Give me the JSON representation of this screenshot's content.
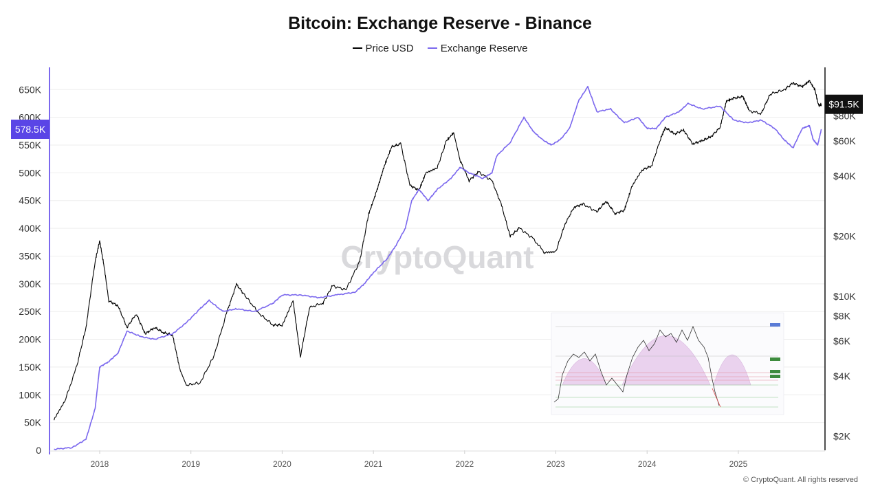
{
  "chart_data": {
    "type": "line",
    "title": "Bitcoin: Exchange Reserve - Binance",
    "series": [
      {
        "name": "Price USD",
        "color": "#000000",
        "axis": "right",
        "points": [
          [
            2017.5,
            2400
          ],
          [
            2017.62,
            3000
          ],
          [
            2017.75,
            4500
          ],
          [
            2017.85,
            7000
          ],
          [
            2017.95,
            15000
          ],
          [
            2018.0,
            19000
          ],
          [
            2018.05,
            14000
          ],
          [
            2018.1,
            9500
          ],
          [
            2018.2,
            9000
          ],
          [
            2018.3,
            7000
          ],
          [
            2018.4,
            8200
          ],
          [
            2018.5,
            6500
          ],
          [
            2018.6,
            7000
          ],
          [
            2018.7,
            6600
          ],
          [
            2018.8,
            6400
          ],
          [
            2018.88,
            4300
          ],
          [
            2018.95,
            3600
          ],
          [
            2019.1,
            3700
          ],
          [
            2019.25,
            5000
          ],
          [
            2019.4,
            8500
          ],
          [
            2019.5,
            11500
          ],
          [
            2019.6,
            10000
          ],
          [
            2019.75,
            8200
          ],
          [
            2019.9,
            7200
          ],
          [
            2020.0,
            7200
          ],
          [
            2020.12,
            9500
          ],
          [
            2020.2,
            5000
          ],
          [
            2020.3,
            8800
          ],
          [
            2020.45,
            9300
          ],
          [
            2020.55,
            11300
          ],
          [
            2020.7,
            10800
          ],
          [
            2020.85,
            15000
          ],
          [
            2020.95,
            26000
          ],
          [
            2021.03,
            33000
          ],
          [
            2021.12,
            45000
          ],
          [
            2021.2,
            56000
          ],
          [
            2021.3,
            58000
          ],
          [
            2021.4,
            36000
          ],
          [
            2021.5,
            34000
          ],
          [
            2021.58,
            42000
          ],
          [
            2021.7,
            44000
          ],
          [
            2021.8,
            60000
          ],
          [
            2021.88,
            66000
          ],
          [
            2021.95,
            48000
          ],
          [
            2022.05,
            38000
          ],
          [
            2022.15,
            42000
          ],
          [
            2022.3,
            38000
          ],
          [
            2022.4,
            29000
          ],
          [
            2022.5,
            20000
          ],
          [
            2022.6,
            22000
          ],
          [
            2022.75,
            19500
          ],
          [
            2022.88,
            16500
          ],
          [
            2023.0,
            16800
          ],
          [
            2023.1,
            23000
          ],
          [
            2023.2,
            28000
          ],
          [
            2023.3,
            29000
          ],
          [
            2023.45,
            26500
          ],
          [
            2023.55,
            30000
          ],
          [
            2023.65,
            26000
          ],
          [
            2023.75,
            27000
          ],
          [
            2023.83,
            35000
          ],
          [
            2023.95,
            43000
          ],
          [
            2024.05,
            45000
          ],
          [
            2024.15,
            62000
          ],
          [
            2024.2,
            70000
          ],
          [
            2024.3,
            65000
          ],
          [
            2024.4,
            68000
          ],
          [
            2024.5,
            58000
          ],
          [
            2024.6,
            60000
          ],
          [
            2024.7,
            63000
          ],
          [
            2024.8,
            70000
          ],
          [
            2024.87,
            95000
          ],
          [
            2024.95,
            98000
          ],
          [
            2025.05,
            100000
          ],
          [
            2025.12,
            85000
          ],
          [
            2025.25,
            82000
          ],
          [
            2025.35,
            103000
          ],
          [
            2025.5,
            108000
          ],
          [
            2025.6,
            117000
          ],
          [
            2025.7,
            112000
          ],
          [
            2025.78,
            120000
          ],
          [
            2025.84,
            108000
          ],
          [
            2025.88,
            90000
          ],
          [
            2025.91,
            91500
          ]
        ]
      },
      {
        "name": "Exchange Reserve",
        "color": "#7b68ee",
        "axis": "left",
        "points": [
          [
            2017.5,
            2000
          ],
          [
            2017.7,
            5000
          ],
          [
            2017.85,
            20000
          ],
          [
            2017.95,
            75000
          ],
          [
            2018.0,
            150000
          ],
          [
            2018.1,
            160000
          ],
          [
            2018.2,
            175000
          ],
          [
            2018.3,
            215000
          ],
          [
            2018.45,
            205000
          ],
          [
            2018.6,
            200000
          ],
          [
            2018.8,
            210000
          ],
          [
            2018.95,
            230000
          ],
          [
            2019.1,
            255000
          ],
          [
            2019.2,
            270000
          ],
          [
            2019.35,
            250000
          ],
          [
            2019.5,
            255000
          ],
          [
            2019.7,
            250000
          ],
          [
            2019.9,
            265000
          ],
          [
            2020.0,
            280000
          ],
          [
            2020.2,
            280000
          ],
          [
            2020.4,
            275000
          ],
          [
            2020.6,
            280000
          ],
          [
            2020.8,
            285000
          ],
          [
            2020.9,
            300000
          ],
          [
            2021.0,
            320000
          ],
          [
            2021.15,
            345000
          ],
          [
            2021.25,
            370000
          ],
          [
            2021.35,
            400000
          ],
          [
            2021.42,
            450000
          ],
          [
            2021.5,
            470000
          ],
          [
            2021.6,
            450000
          ],
          [
            2021.7,
            470000
          ],
          [
            2021.85,
            490000
          ],
          [
            2021.95,
            510000
          ],
          [
            2022.05,
            500000
          ],
          [
            2022.2,
            490000
          ],
          [
            2022.3,
            500000
          ],
          [
            2022.35,
            530000
          ],
          [
            2022.5,
            555000
          ],
          [
            2022.65,
            600000
          ],
          [
            2022.75,
            575000
          ],
          [
            2022.85,
            560000
          ],
          [
            2022.95,
            550000
          ],
          [
            2023.05,
            560000
          ],
          [
            2023.15,
            580000
          ],
          [
            2023.25,
            630000
          ],
          [
            2023.35,
            655000
          ],
          [
            2023.45,
            610000
          ],
          [
            2023.6,
            615000
          ],
          [
            2023.75,
            590000
          ],
          [
            2023.9,
            600000
          ],
          [
            2024.0,
            580000
          ],
          [
            2024.1,
            580000
          ],
          [
            2024.2,
            600000
          ],
          [
            2024.35,
            610000
          ],
          [
            2024.45,
            625000
          ],
          [
            2024.6,
            615000
          ],
          [
            2024.8,
            620000
          ],
          [
            2024.95,
            595000
          ],
          [
            2025.1,
            590000
          ],
          [
            2025.25,
            595000
          ],
          [
            2025.4,
            580000
          ],
          [
            2025.5,
            560000
          ],
          [
            2025.6,
            545000
          ],
          [
            2025.7,
            580000
          ],
          [
            2025.78,
            585000
          ],
          [
            2025.82,
            560000
          ],
          [
            2025.87,
            550000
          ],
          [
            2025.91,
            578500
          ]
        ]
      }
    ],
    "x_range": [
      2017.45,
      2025.95
    ],
    "x_ticks": [
      {
        "value": 2018,
        "label": "2018"
      },
      {
        "value": 2019,
        "label": "2019"
      },
      {
        "value": 2020,
        "label": "2020"
      },
      {
        "value": 2021,
        "label": "2021"
      },
      {
        "value": 2022,
        "label": "2022"
      },
      {
        "value": 2023,
        "label": "2023"
      },
      {
        "value": 2024,
        "label": "2024"
      },
      {
        "value": 2025,
        "label": "2025"
      }
    ],
    "y_left": {
      "range": [
        0,
        690000
      ],
      "scale": "linear",
      "ticks": [
        {
          "value": 0,
          "label": "0"
        },
        {
          "value": 50000,
          "label": "50K"
        },
        {
          "value": 100000,
          "label": "100K"
        },
        {
          "value": 150000,
          "label": "150K"
        },
        {
          "value": 200000,
          "label": "200K"
        },
        {
          "value": 250000,
          "label": "250K"
        },
        {
          "value": 300000,
          "label": "300K"
        },
        {
          "value": 350000,
          "label": "350K"
        },
        {
          "value": 400000,
          "label": "400K"
        },
        {
          "value": 450000,
          "label": "450K"
        },
        {
          "value": 500000,
          "label": "500K"
        },
        {
          "value": 550000,
          "label": "550K"
        },
        {
          "value": 600000,
          "label": "600K"
        },
        {
          "value": 650000,
          "label": "650K"
        }
      ],
      "current_value_label": "578.5K",
      "current_value": 578500,
      "badge_color": "#5a45e6"
    },
    "y_right": {
      "range": [
        1700,
        140000
      ],
      "scale": "log",
      "ticks": [
        {
          "value": 2000,
          "label": "$2K"
        },
        {
          "value": 4000,
          "label": "$4K"
        },
        {
          "value": 6000,
          "label": "$6K"
        },
        {
          "value": 8000,
          "label": "$8K"
        },
        {
          "value": 10000,
          "label": "$10K"
        },
        {
          "value": 20000,
          "label": "$20K"
        },
        {
          "value": 40000,
          "label": "$40K"
        },
        {
          "value": 60000,
          "label": "$60K"
        },
        {
          "value": 80000,
          "label": "$80K"
        }
      ],
      "current_value_label": "$91.5K",
      "current_value": 91500,
      "badge_color": "#111111"
    },
    "watermark": "CryptoQuant",
    "legend_position": "top-center",
    "grid": "horizontal"
  },
  "footer": {
    "copyright": "© CryptoQuant. All rights reserved"
  }
}
